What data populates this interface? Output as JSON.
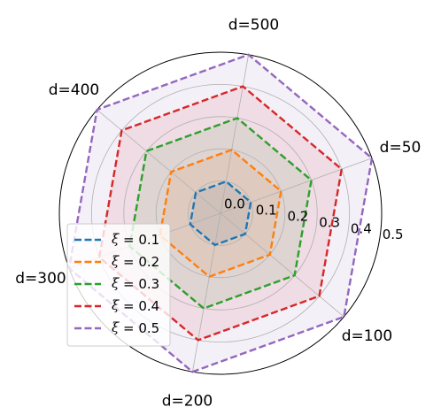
{
  "chart_data": {
    "type": "radar",
    "axes": [
      "d=50",
      "d=100",
      "d=200",
      "d=300",
      "d=400",
      "d=500"
    ],
    "radial_ticks": [
      "0.0",
      "0.1",
      "0.2",
      "0.3",
      "0.4",
      "0.5"
    ],
    "rlim": [
      0,
      0.5
    ],
    "grid": true,
    "legend_position": "lower-left",
    "series": [
      {
        "name": "ξ = 0.1",
        "legend_symbol": "ξ",
        "legend_value": "= 0.1",
        "color": "#1f77b4",
        "values": [
          0.1,
          0.1,
          0.1,
          0.1,
          0.1,
          0.1
        ]
      },
      {
        "name": "ξ = 0.2",
        "legend_symbol": "ξ",
        "legend_value": "= 0.2",
        "color": "#ff7f0e",
        "values": [
          0.2,
          0.2,
          0.2,
          0.2,
          0.2,
          0.2
        ]
      },
      {
        "name": "ξ = 0.3",
        "legend_symbol": "ξ",
        "legend_value": "= 0.3",
        "color": "#2ca02c",
        "values": [
          0.3,
          0.3,
          0.3,
          0.3,
          0.3,
          0.3
        ]
      },
      {
        "name": "ξ = 0.4",
        "legend_symbol": "ξ",
        "legend_value": "= 0.4",
        "color": "#d62728",
        "values": [
          0.4,
          0.4,
          0.4,
          0.4,
          0.4,
          0.4
        ]
      },
      {
        "name": "ξ = 0.5",
        "legend_symbol": "ξ",
        "legend_value": "= 0.5",
        "color": "#9467bd",
        "values": [
          0.5,
          0.5,
          0.5,
          0.5,
          0.5,
          0.5
        ]
      }
    ]
  }
}
